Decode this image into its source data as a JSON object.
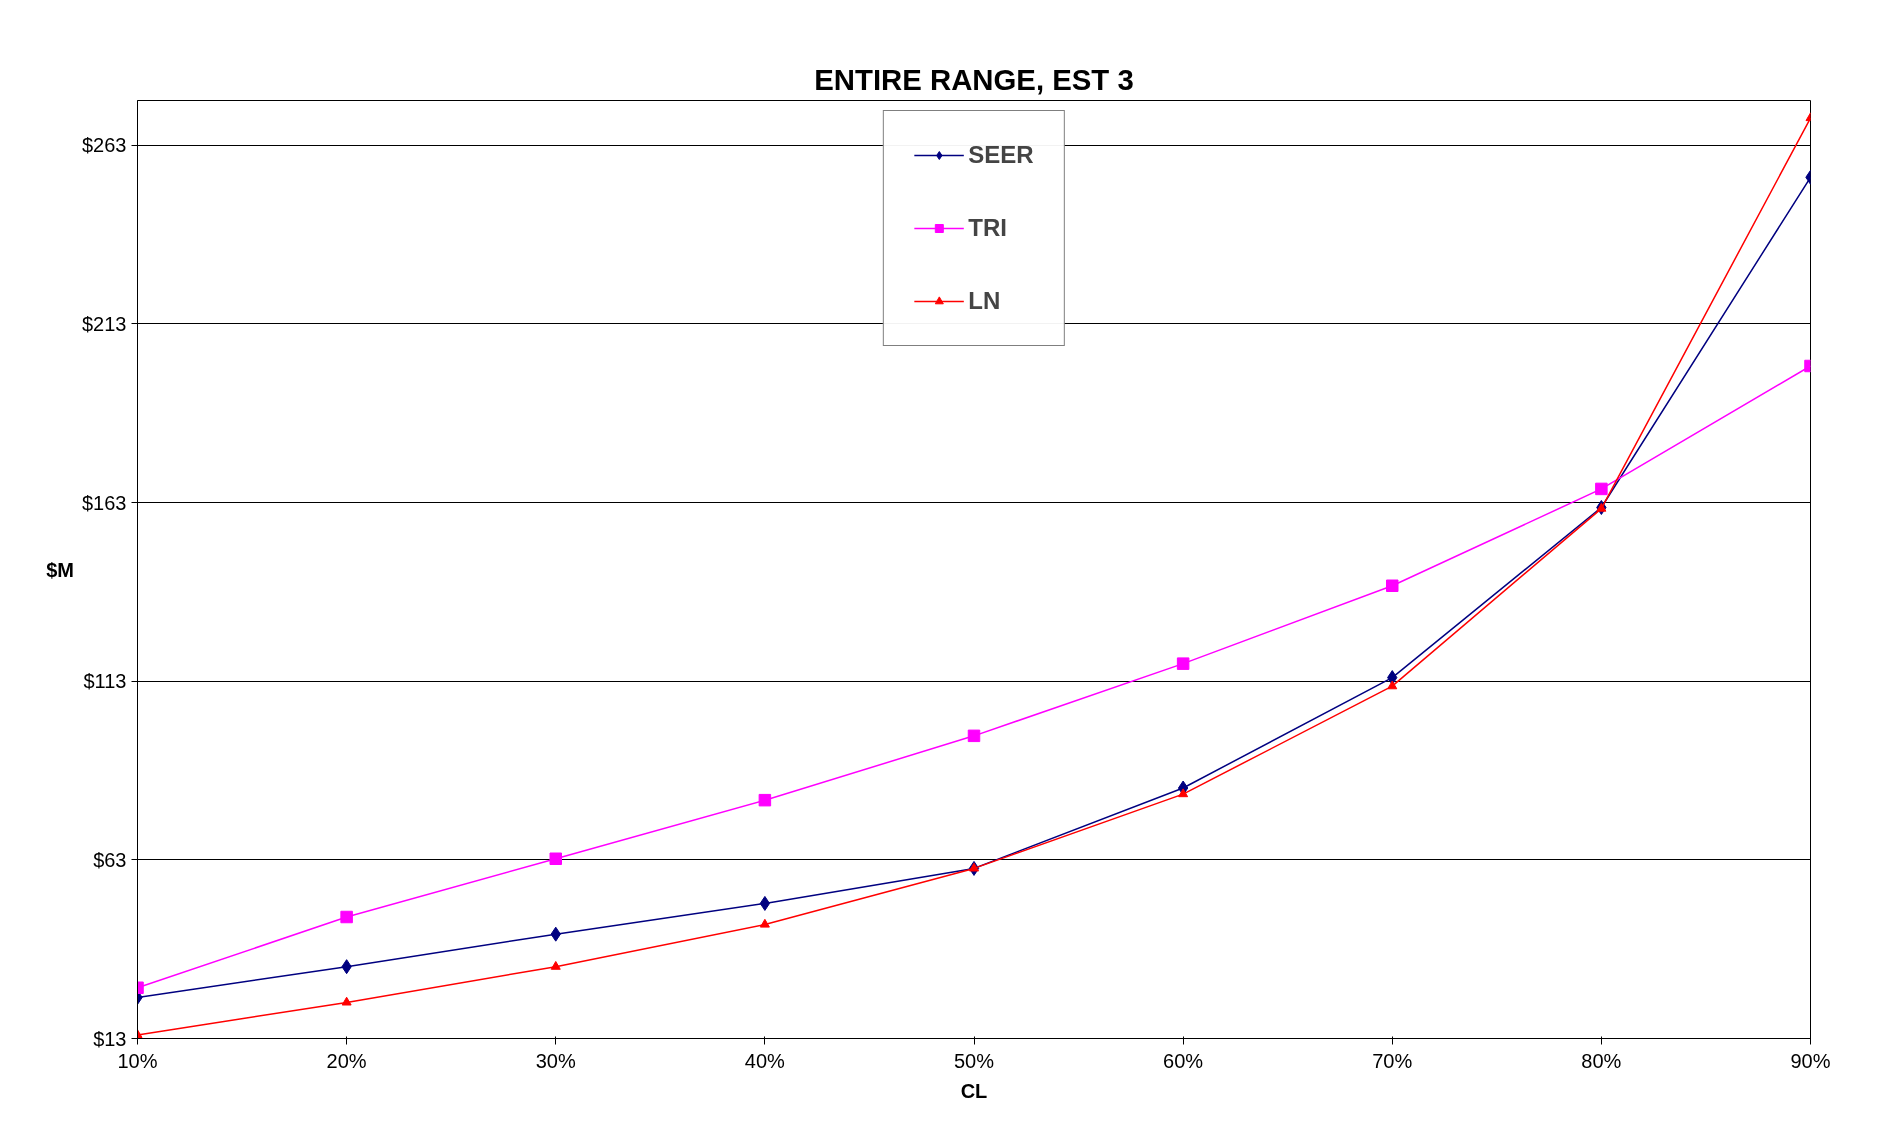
{
  "chart_data": {
    "type": "line",
    "title": "ENTIRE RANGE, EST 3",
    "xlabel": "CL",
    "ylabel": "$M",
    "x": [
      10,
      20,
      30,
      40,
      50,
      60,
      70,
      80,
      90
    ],
    "series": [
      {
        "name": "SEER",
        "color": "#000080",
        "marker": "diamond",
        "values": [
          24.5,
          33.1,
          42.2,
          50.8,
          60.6,
          83.1,
          114,
          161.6,
          254
        ]
      },
      {
        "name": "TRI",
        "color": "#ff00ff",
        "marker": "square",
        "values": [
          27.2,
          47,
          63.3,
          79.7,
          97.7,
          117.9,
          139.7,
          166.8,
          201.2
        ]
      },
      {
        "name": "LN",
        "color": "#ff0000",
        "marker": "triangle",
        "values": [
          14,
          23.1,
          33.1,
          44.9,
          60.6,
          81.4,
          111.6,
          161.3,
          270.6
        ]
      }
    ],
    "xlim": [
      10,
      90
    ],
    "xticks": [
      {
        "value": 10,
        "label": "10%"
      },
      {
        "value": 20,
        "label": "20%"
      },
      {
        "value": 30,
        "label": "30%"
      },
      {
        "value": 40,
        "label": "40%"
      },
      {
        "value": 50,
        "label": "50%"
      },
      {
        "value": 60,
        "label": "60%"
      },
      {
        "value": 70,
        "label": "70%"
      },
      {
        "value": 80,
        "label": "80%"
      },
      {
        "value": 90,
        "label": "90%"
      }
    ],
    "ylim": [
      13,
      275.5
    ],
    "yticks": [
      {
        "value": 13,
        "label": "$13"
      },
      {
        "value": 63,
        "label": "$63"
      },
      {
        "value": 113,
        "label": "$113"
      },
      {
        "value": 163,
        "label": "$163"
      },
      {
        "value": 213,
        "label": "$213"
      },
      {
        "value": 263,
        "label": "$263"
      }
    ],
    "grid": "y",
    "legend": "top",
    "line_style": "solid"
  }
}
